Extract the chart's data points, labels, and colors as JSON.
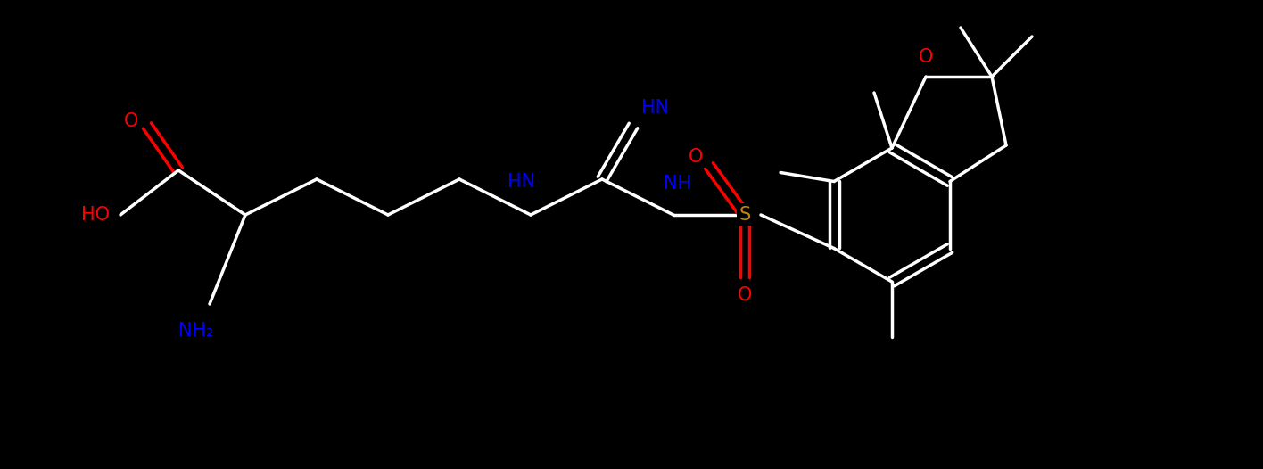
{
  "background": "#000000",
  "white": "#FFFFFF",
  "blue": "#0000FF",
  "red": "#FF0000",
  "gold": "#B8860B",
  "figsize": [
    14.16,
    5.26
  ],
  "dpi": 100,
  "lw": 2.5,
  "fontsize": 15,
  "xlim": [
    0.0,
    14.16
  ],
  "ylim": [
    0.0,
    5.26
  ]
}
